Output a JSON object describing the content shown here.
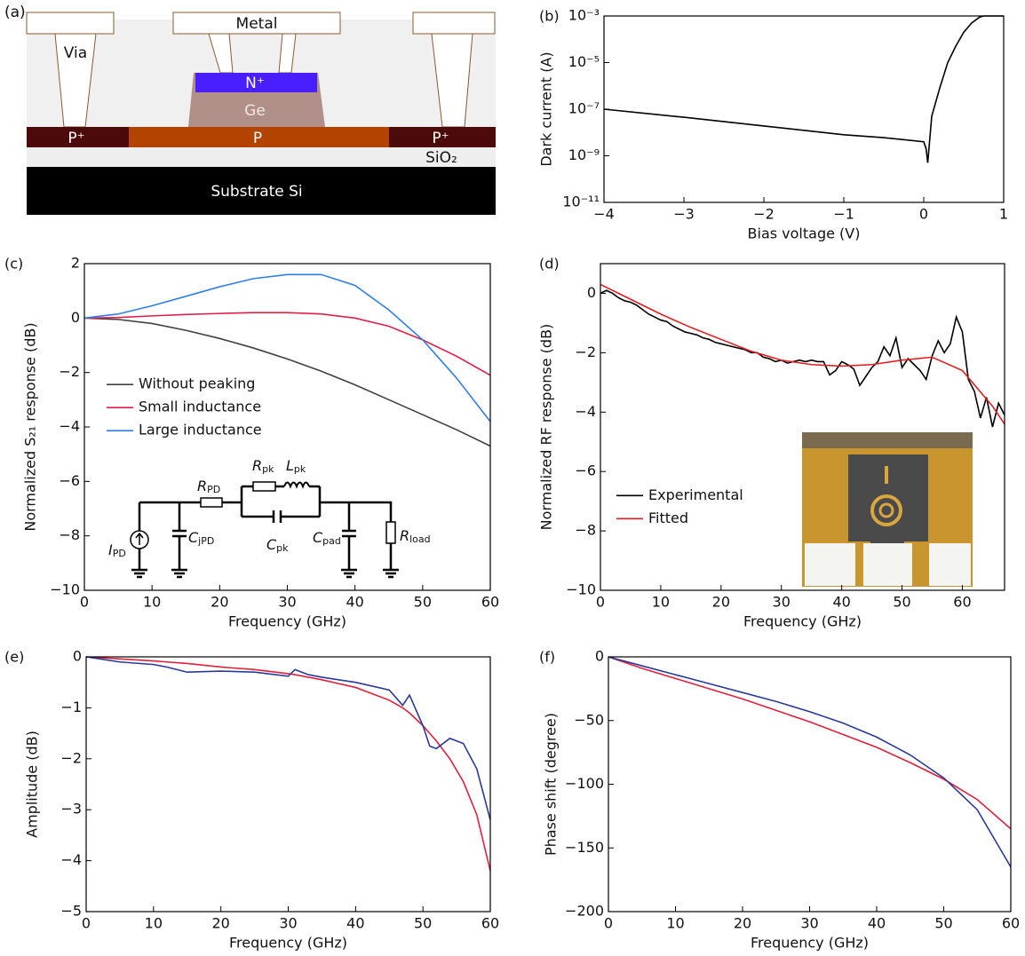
{
  "diagram": {
    "panel_label": "(a)",
    "metal": "Metal",
    "via": "Via",
    "n_plus": "N⁺",
    "ge": "Ge",
    "p_plus_left": "P⁺",
    "p": "P",
    "p_plus_right": "P⁺",
    "oxide": "SiO₂",
    "substrate": "Substrate Si"
  },
  "chart_data": [
    {
      "type": "line",
      "panel_label": "(b)",
      "xlabel": "Bias voltage (V)",
      "ylabel": "Dark current (A)",
      "yscale": "log",
      "xlim": [
        -4,
        1
      ],
      "xticks": [
        {
          "value": -4,
          "label": "−4"
        },
        {
          "value": -3,
          "label": "−3"
        },
        {
          "value": -2,
          "label": "−2"
        },
        {
          "value": -1,
          "label": "−1"
        },
        0,
        1
      ],
      "ylim": [
        1e-11,
        0.001
      ],
      "yticks": [
        {
          "value": 0.001,
          "label": "10⁻³"
        },
        {
          "value": 1e-05,
          "label": "10⁻⁵"
        },
        {
          "value": 1e-07,
          "label": "10⁻⁷"
        },
        {
          "value": 1e-09,
          "label": "10⁻⁹"
        },
        {
          "value": 1e-11,
          "label": "10⁻¹¹"
        }
      ],
      "series": [
        {
          "color": "#000000",
          "x": [
            -4,
            -3,
            -2,
            -1,
            -0.5,
            0,
            0.03,
            0.05,
            0.1,
            0.2,
            0.3,
            0.4,
            0.5,
            0.6,
            0.7,
            0.75,
            1
          ],
          "values": [
            1e-07,
            4.5e-08,
            1.9e-08,
            8e-09,
            6e-09,
            4e-09,
            2e-09,
            5e-10,
            5e-08,
            8e-07,
            1e-05,
            5e-05,
            0.0002,
            0.0005,
            0.0009,
            0.001,
            0.001
          ]
        }
      ]
    },
    {
      "type": "line",
      "panel_label": "(c)",
      "xlabel": "Frequency (GHz)",
      "ylabel": "Normalized S₂₁ response (dB)",
      "legend": "center left",
      "xlim": [
        0,
        60
      ],
      "xticks": [
        0,
        10,
        20,
        30,
        40,
        50,
        60
      ],
      "ylim": [
        -10,
        2
      ],
      "yticks": [
        2,
        0,
        {
          "value": -2,
          "label": "−2"
        },
        {
          "value": -4,
          "label": "−4"
        },
        {
          "value": -6,
          "label": "−6"
        },
        {
          "value": -8,
          "label": "−8"
        },
        {
          "value": -10,
          "label": "−10"
        }
      ],
      "series": [
        {
          "name": "Without peaking",
          "color": "#404040",
          "x": [
            0,
            5,
            10,
            15,
            20,
            25,
            30,
            35,
            40,
            45,
            50,
            55,
            60
          ],
          "values": [
            0,
            -0.05,
            -0.2,
            -0.45,
            -0.75,
            -1.1,
            -1.5,
            -1.95,
            -2.45,
            -3,
            -3.55,
            -4.1,
            -4.7
          ]
        },
        {
          "name": "Small inductance",
          "color": "#e0204a",
          "x": [
            0,
            5,
            10,
            15,
            20,
            25,
            30,
            35,
            40,
            45,
            50,
            55,
            60
          ],
          "values": [
            0,
            0.02,
            0.08,
            0.13,
            0.17,
            0.2,
            0.2,
            0.15,
            0,
            -0.3,
            -0.8,
            -1.4,
            -2.1
          ]
        },
        {
          "name": "Large inductance",
          "color": "#2f7fe8",
          "x": [
            0,
            5,
            10,
            15,
            20,
            25,
            30,
            35,
            40,
            45,
            50,
            55,
            60
          ],
          "values": [
            0,
            0.15,
            0.45,
            0.8,
            1.15,
            1.45,
            1.6,
            1.6,
            1.2,
            0.3,
            -0.8,
            -2.2,
            -3.8
          ]
        }
      ],
      "annotations": [
        {
          "symbol": "I",
          "subscript": "PD"
        },
        {
          "symbol": "C",
          "subscript": "jPD"
        },
        {
          "symbol": "R",
          "subscript": "PD"
        },
        {
          "symbol": "R",
          "subscript": "pk"
        },
        {
          "symbol": "L",
          "subscript": "pk"
        },
        {
          "symbol": "C",
          "subscript": "pk"
        },
        {
          "symbol": "C",
          "subscript": "pad"
        },
        {
          "symbol": "R",
          "subscript": "load"
        }
      ]
    },
    {
      "type": "line",
      "panel_label": "(d)",
      "xlabel": "Frequency (GHz)",
      "ylabel": "Normalized RF response (dB)",
      "legend": "lower left",
      "xlim": [
        0,
        67
      ],
      "xticks": [
        0,
        10,
        20,
        30,
        40,
        50,
        60
      ],
      "ylim": [
        -10,
        1
      ],
      "yticks": [
        0,
        {
          "value": -2,
          "label": "−2"
        },
        {
          "value": -4,
          "label": "−4"
        },
        {
          "value": -6,
          "label": "−6"
        },
        {
          "value": -8,
          "label": "−8"
        },
        {
          "value": -10,
          "label": "−10"
        }
      ],
      "series": [
        {
          "name": "Experimental",
          "color": "#000000",
          "x": [
            0,
            1,
            2,
            3,
            4,
            5,
            6,
            7,
            8,
            9,
            10,
            11,
            12,
            13,
            14,
            15,
            16,
            17,
            18,
            19,
            20,
            21,
            22,
            23,
            24,
            25,
            26,
            27,
            28,
            29,
            30,
            31,
            32,
            33,
            34,
            35,
            36,
            37,
            38,
            39,
            40,
            41,
            42,
            43,
            44,
            45,
            46,
            47,
            48,
            49,
            50,
            51,
            52,
            53,
            54,
            55,
            56,
            57,
            58,
            59,
            60,
            61,
            62,
            63,
            64,
            65,
            66,
            67
          ],
          "values": [
            0,
            0.1,
            0,
            -0.15,
            -0.25,
            -0.3,
            -0.4,
            -0.55,
            -0.7,
            -0.8,
            -0.9,
            -0.95,
            -1.1,
            -1.2,
            -1.3,
            -1.35,
            -1.4,
            -1.5,
            -1.55,
            -1.65,
            -1.7,
            -1.75,
            -1.8,
            -1.85,
            -1.9,
            -2,
            -2,
            -2.15,
            -2.2,
            -2.3,
            -2.25,
            -2.35,
            -2.3,
            -2.25,
            -2.3,
            -2.25,
            -2.3,
            -2.3,
            -2.75,
            -2.6,
            -2.3,
            -2.4,
            -2.55,
            -3.1,
            -2.8,
            -2.5,
            -2.3,
            -1.8,
            -2.1,
            -1.5,
            -2.5,
            -2.2,
            -2.4,
            -2.6,
            -2.9,
            -2.1,
            -1.6,
            -2,
            -1.7,
            -0.8,
            -1.3,
            -2.9,
            -3.3,
            -4.2,
            -3.5,
            -4.5,
            -3.7,
            -4.1
          ]
        },
        {
          "name": "Fitted",
          "color": "#e02020",
          "x": [
            0,
            5,
            10,
            15,
            20,
            25,
            30,
            35,
            40,
            45,
            50,
            55,
            60,
            65,
            67
          ],
          "values": [
            0.3,
            -0.2,
            -0.7,
            -1.15,
            -1.55,
            -1.95,
            -2.25,
            -2.4,
            -2.45,
            -2.4,
            -2.25,
            -2.15,
            -2.6,
            -3.8,
            -4.4
          ]
        }
      ]
    },
    {
      "type": "line",
      "panel_label": "(e)",
      "xlabel": "Frequency (GHz)",
      "ylabel": "Amplitude (dB)",
      "xlim": [
        0,
        60
      ],
      "xticks": [
        0,
        10,
        20,
        30,
        40,
        50,
        60
      ],
      "ylim": [
        -5,
        0
      ],
      "yticks": [
        0,
        {
          "value": -1,
          "label": "−1"
        },
        {
          "value": -2,
          "label": "−2"
        },
        {
          "value": -3,
          "label": "−3"
        },
        {
          "value": -4,
          "label": "−4"
        },
        {
          "value": -5,
          "label": "−5"
        }
      ],
      "series": [
        {
          "color": "#e0203a",
          "x": [
            0,
            5,
            10,
            12,
            15,
            20,
            25,
            30,
            31,
            33,
            35,
            40,
            45,
            47,
            48,
            50,
            51,
            52,
            54,
            56,
            58,
            60
          ],
          "values": [
            0,
            -0.04,
            -0.08,
            -0.1,
            -0.13,
            -0.2,
            -0.25,
            -0.33,
            -0.35,
            -0.4,
            -0.45,
            -0.6,
            -0.85,
            -1,
            -1.1,
            -1.35,
            -1.5,
            -1.65,
            -2,
            -2.45,
            -3.1,
            -4.2
          ]
        },
        {
          "color": "#2a3a9a",
          "x": [
            0,
            5,
            10,
            12,
            15,
            20,
            25,
            30,
            31,
            33,
            35,
            40,
            45,
            47,
            48,
            50,
            51,
            52,
            54,
            56,
            58,
            60
          ],
          "values": [
            0,
            -0.1,
            -0.15,
            -0.2,
            -0.3,
            -0.28,
            -0.3,
            -0.38,
            -0.25,
            -0.35,
            -0.4,
            -0.5,
            -0.65,
            -0.95,
            -0.75,
            -1.35,
            -1.75,
            -1.8,
            -1.6,
            -1.7,
            -2.2,
            -3.2
          ]
        }
      ]
    },
    {
      "type": "line",
      "panel_label": "(f)",
      "xlabel": "Frequency (GHz)",
      "ylabel": "Phase shift (degree)",
      "xlim": [
        0,
        60
      ],
      "xticks": [
        0,
        10,
        20,
        30,
        40,
        50,
        60
      ],
      "ylim": [
        -200,
        0
      ],
      "yticks": [
        0,
        {
          "value": -50,
          "label": "−50"
        },
        {
          "value": -100,
          "label": "−100"
        },
        {
          "value": -150,
          "label": "−150"
        },
        {
          "value": -200,
          "label": "−200"
        }
      ],
      "series": [
        {
          "color": "#e0203a",
          "x": [
            0,
            5,
            10,
            15,
            20,
            25,
            30,
            35,
            40,
            45,
            50,
            55,
            60
          ],
          "values": [
            0,
            -9,
            -17,
            -25,
            -33,
            -42,
            -51,
            -61,
            -71,
            -83,
            -96,
            -112,
            -135
          ]
        },
        {
          "color": "#2a3a9a",
          "x": [
            0,
            5,
            10,
            15,
            20,
            25,
            30,
            35,
            40,
            45,
            50,
            55,
            60
          ],
          "values": [
            0,
            -7,
            -14,
            -21,
            -28,
            -35,
            -43,
            -52,
            -63,
            -77,
            -95,
            -120,
            -165
          ]
        }
      ]
    }
  ]
}
